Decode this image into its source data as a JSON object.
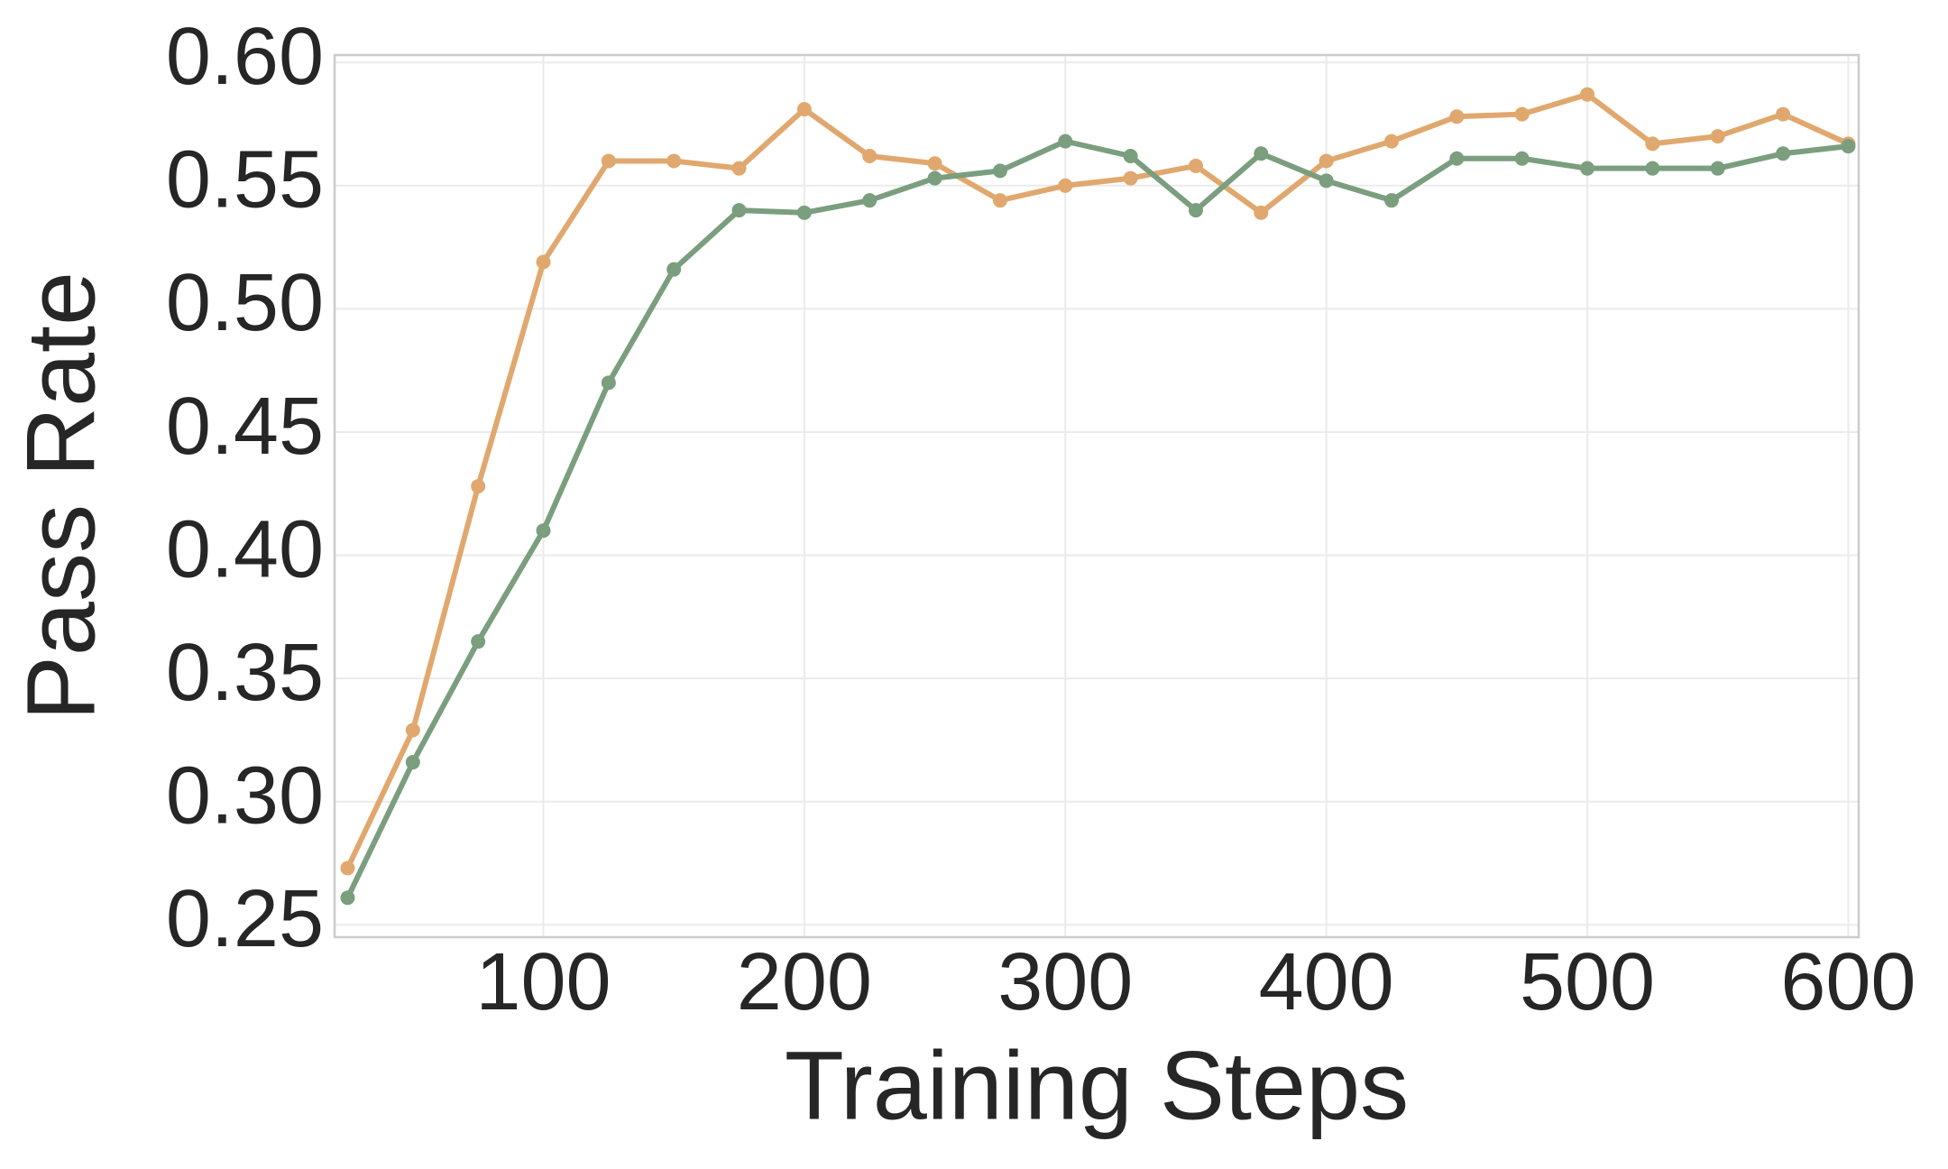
{
  "chart_data": {
    "type": "line",
    "x_label": "Training Steps",
    "y_label": "Pass Rate",
    "x": [
      25,
      50,
      75,
      100,
      125,
      150,
      175,
      200,
      225,
      250,
      275,
      300,
      325,
      350,
      375,
      400,
      425,
      450,
      475,
      500,
      525,
      550,
      575,
      600
    ],
    "series": [
      {
        "color": "#e0a86e",
        "values": [
          0.273,
          0.329,
          0.428,
          0.519,
          0.56,
          0.56,
          0.557,
          0.581,
          0.562,
          0.559,
          0.544,
          0.55,
          0.553,
          0.558,
          0.539,
          0.56,
          0.568,
          0.578,
          0.579,
          0.587,
          0.567,
          0.57,
          0.579,
          0.567
        ]
      },
      {
        "color": "#7a9e7e",
        "values": [
          0.261,
          0.316,
          0.365,
          0.41,
          0.47,
          0.516,
          0.54,
          0.539,
          0.544,
          0.553,
          0.556,
          0.568,
          0.562,
          0.54,
          0.563,
          0.552,
          0.544,
          0.561,
          0.561,
          0.557,
          0.557,
          0.557,
          0.563,
          0.566
        ]
      }
    ],
    "xlim": [
      20,
      604
    ],
    "ylim": [
      0.245,
      0.603
    ],
    "xticks": [
      100,
      200,
      300,
      400,
      500,
      600
    ],
    "yticks": [
      {
        "value": 0.25,
        "label": "0.25"
      },
      {
        "value": 0.3,
        "label": "0.30"
      },
      {
        "value": 0.35,
        "label": "0.35"
      },
      {
        "value": 0.4,
        "label": "0.40"
      },
      {
        "value": 0.45,
        "label": "0.45"
      },
      {
        "value": 0.5,
        "label": "0.50"
      },
      {
        "value": 0.55,
        "label": "0.55"
      },
      {
        "value": 0.6,
        "label": "0.60"
      }
    ],
    "grid": true
  }
}
